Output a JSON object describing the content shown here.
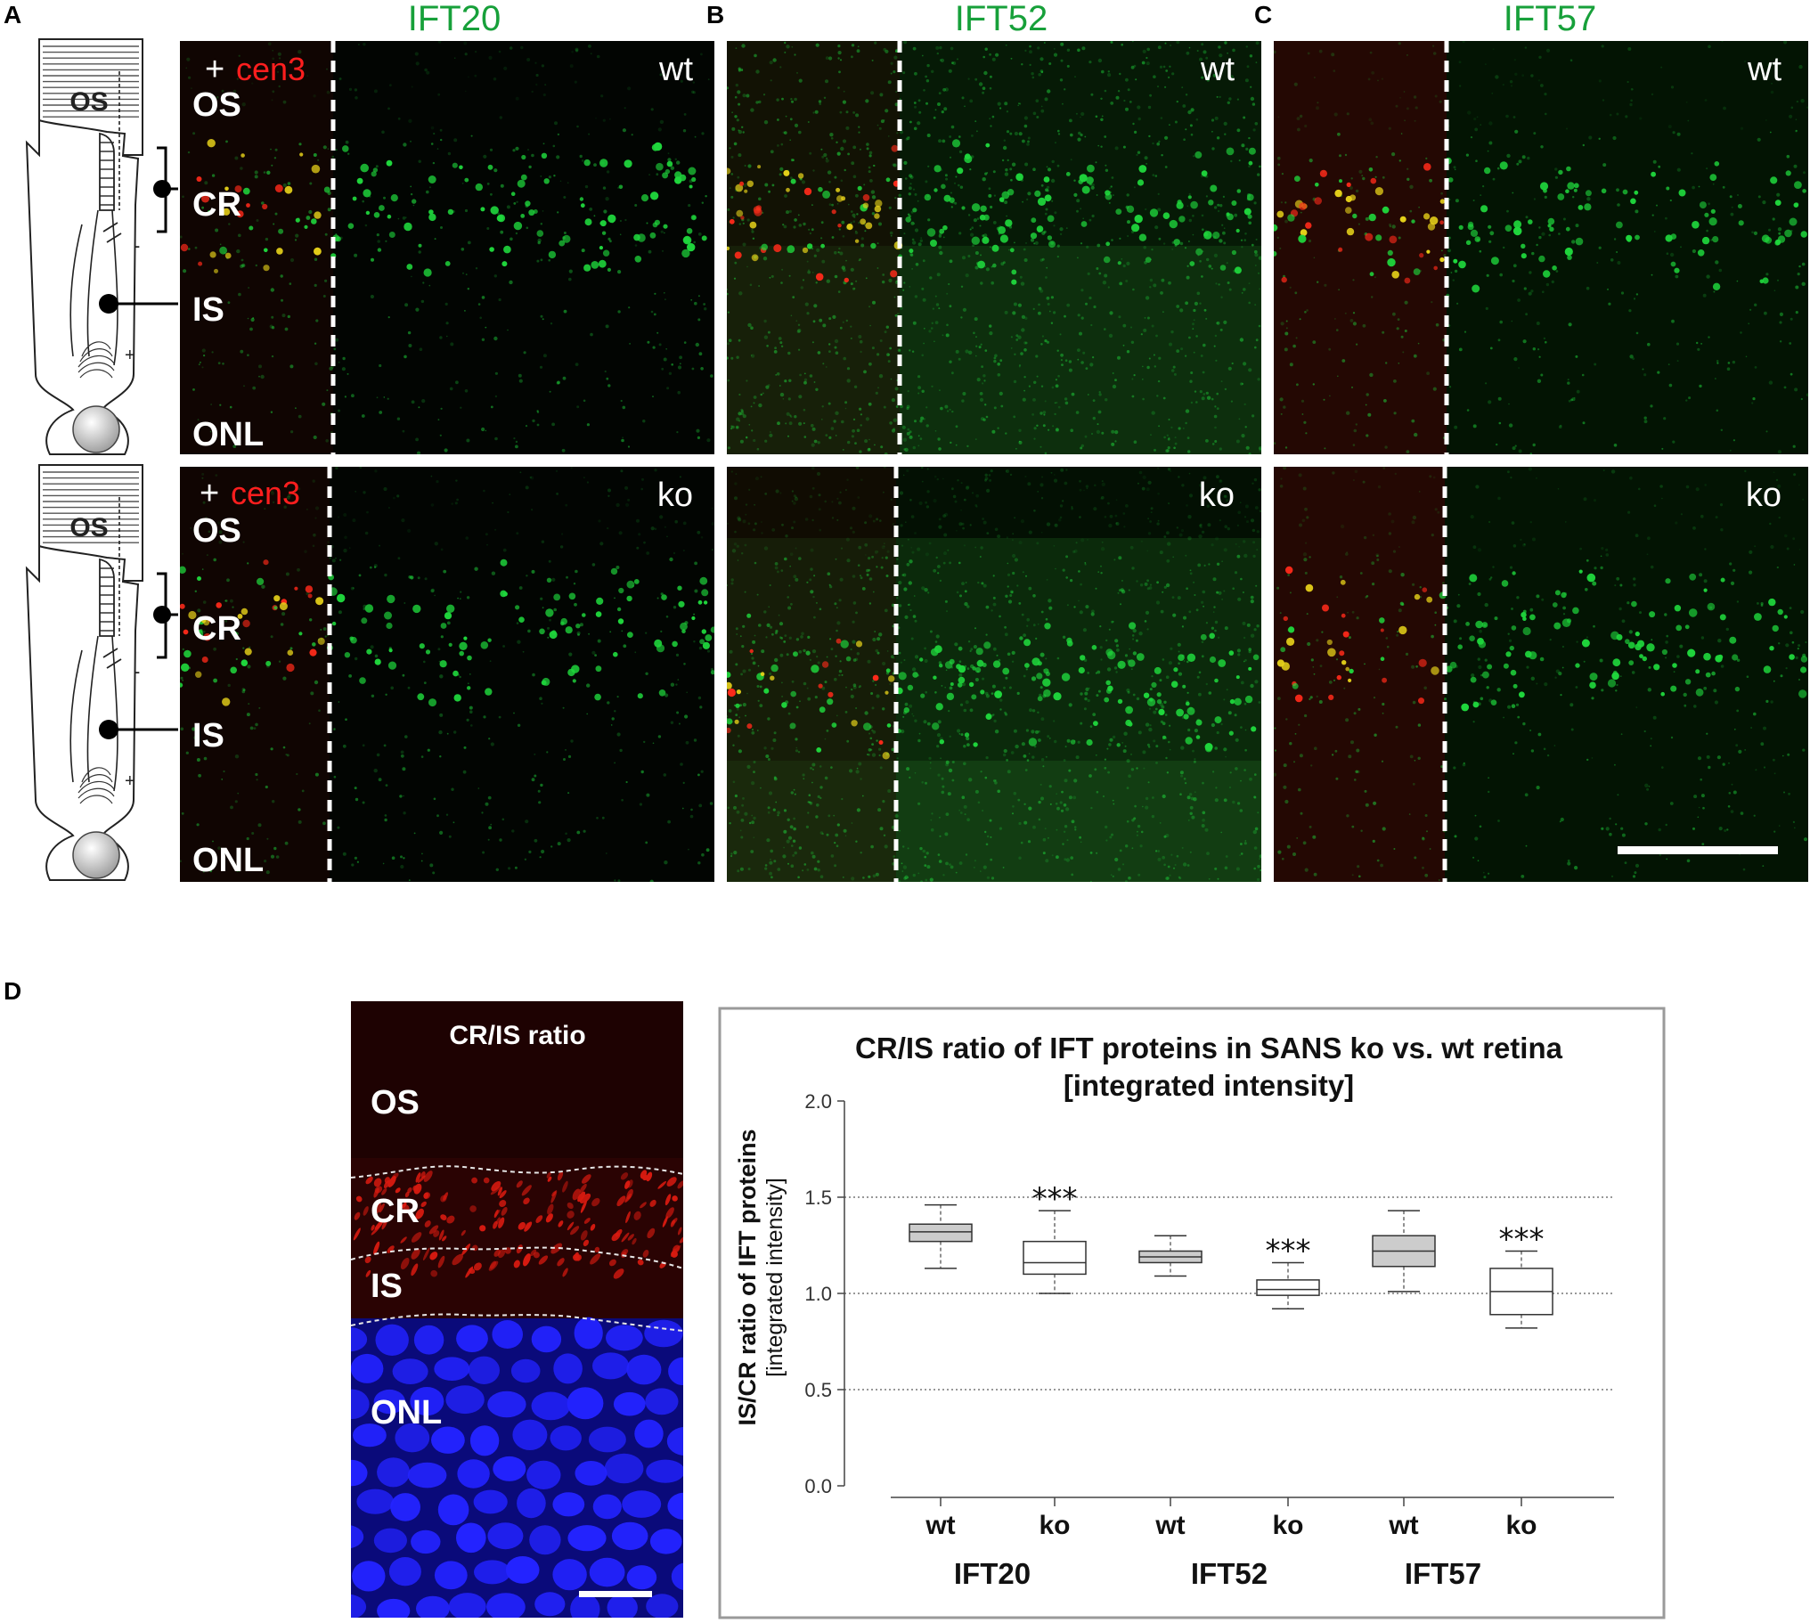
{
  "panel_labels": {
    "a": "A",
    "b": "B",
    "c": "C",
    "d": "D"
  },
  "protein_titles": [
    "IFT20",
    "IFT52",
    "IFT57"
  ],
  "conditions": {
    "wt": "wt",
    "ko": "ko"
  },
  "cen3_label": "cen3",
  "plus_sign": "+",
  "layers": {
    "os": "OS",
    "cr": "CR",
    "is": "IS",
    "onl": "ONL"
  },
  "schematic_labels": {
    "os": "OS",
    "minus": "-",
    "plus": "+"
  },
  "micro_d": {
    "title": "CR/IS ratio",
    "os": "OS",
    "cr": "CR",
    "is": "IS",
    "onl": "ONL"
  },
  "colors": {
    "green_stain": "#1fd63c",
    "red_stain": "#ff2a1a",
    "blue_stain": "#2323ff",
    "title_green": "#17a03a"
  },
  "chart_data": {
    "type": "box",
    "title": "CR/IS ratio of IFT proteins in SANS ko vs. wt retina",
    "subtitle": "[integrated intensity]",
    "ylabel": "IS/CR ratio of IFT proteins",
    "ylabel2": "[integrated intensity]",
    "ylim": [
      0.0,
      2.0
    ],
    "yticks": [
      "0.0",
      "0.5",
      "1.0",
      "1.5",
      "2.0"
    ],
    "gridlines": [
      0.5,
      1.0,
      1.5
    ],
    "categories": [
      "wt",
      "ko",
      "wt",
      "ko",
      "wt",
      "ko"
    ],
    "groups": [
      "IFT20",
      "IFT52",
      "IFT57"
    ],
    "boxes": [
      {
        "group": "IFT20",
        "condition": "wt",
        "min": 1.13,
        "q1": 1.27,
        "median": 1.32,
        "q3": 1.36,
        "max": 1.46,
        "fill": "#cccccc"
      },
      {
        "group": "IFT20",
        "condition": "ko",
        "min": 1.0,
        "q1": 1.1,
        "median": 1.16,
        "q3": 1.27,
        "max": 1.43,
        "fill": "#ffffff",
        "significance": "***"
      },
      {
        "group": "IFT52",
        "condition": "wt",
        "min": 1.09,
        "q1": 1.16,
        "median": 1.19,
        "q3": 1.22,
        "max": 1.3,
        "fill": "#cccccc"
      },
      {
        "group": "IFT52",
        "condition": "ko",
        "min": 0.92,
        "q1": 0.99,
        "median": 1.02,
        "q3": 1.07,
        "max": 1.16,
        "fill": "#ffffff",
        "significance": "***"
      },
      {
        "group": "IFT57",
        "condition": "wt",
        "min": 1.01,
        "q1": 1.14,
        "median": 1.22,
        "q3": 1.3,
        "max": 1.43,
        "fill": "#cccccc"
      },
      {
        "group": "IFT57",
        "condition": "ko",
        "min": 0.82,
        "q1": 0.89,
        "median": 1.01,
        "q3": 1.13,
        "max": 1.22,
        "fill": "#ffffff",
        "significance": "***"
      }
    ]
  }
}
